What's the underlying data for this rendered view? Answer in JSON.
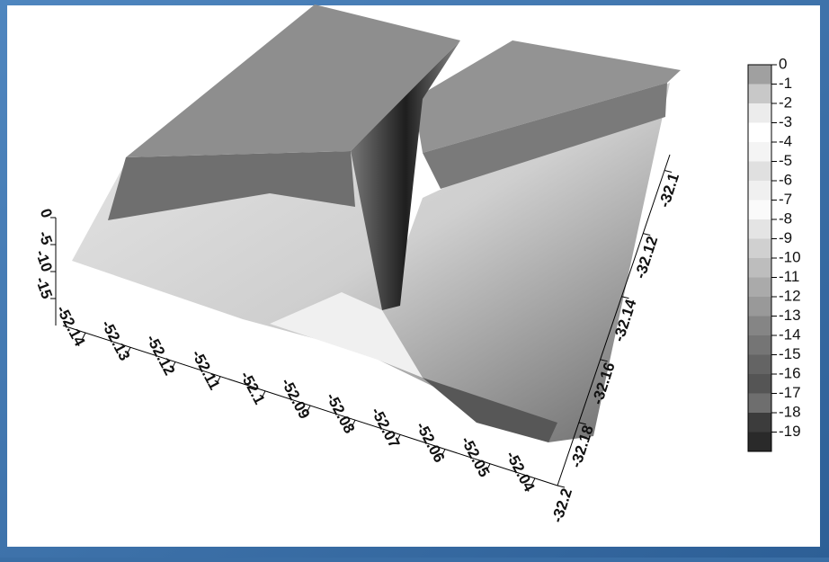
{
  "chart_data": {
    "type": "surface3d",
    "xlim": [
      -52.145,
      -52.035
    ],
    "xticks": [
      -52.14,
      -52.13,
      -52.12,
      -52.11,
      -52.1,
      -52.09,
      -52.08,
      -52.07,
      -52.06,
      -52.05,
      -52.04
    ],
    "ylim": [
      -32.2,
      -32.095
    ],
    "yticks": [
      -32.2,
      -32.18,
      -32.16,
      -32.14,
      -32.12,
      -32.1
    ],
    "zlim": [
      -20,
      0
    ],
    "zticks": [
      0,
      -5,
      -10,
      -15
    ],
    "colorbar": {
      "lim": [
        -20,
        0
      ],
      "ticks": [
        0,
        -1,
        -2,
        -3,
        -4,
        -5,
        -6,
        -7,
        -8,
        -9,
        -10,
        -11,
        -12,
        -13,
        -14,
        -15,
        -16,
        -17,
        -18,
        -19
      ],
      "colors": [
        "#a0a0a0",
        "#c8c8c8",
        "#ececec",
        "#ffffff",
        "#f4f4f4",
        "#e0e0e0",
        "#f0f0f0",
        "#fafafa",
        "#e4e4e4",
        "#d0d0d0",
        "#bdbdbd",
        "#aaaaaa",
        "#999999",
        "#858585",
        "#757575",
        "#646464",
        "#555555",
        "#6e6e6e",
        "#3c3c3c",
        "#2a2a2a"
      ]
    }
  }
}
